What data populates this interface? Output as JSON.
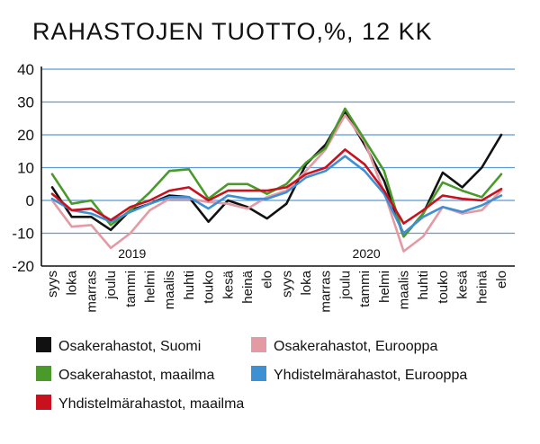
{
  "chart_data": {
    "type": "line",
    "title": "RAHASTOJEN TUOTTO,%, 12 KK",
    "categories": [
      "syys",
      "loka",
      "marras",
      "joulu",
      "tammi",
      "helmi",
      "maalis",
      "huhti",
      "touko",
      "kesä",
      "heinä",
      "elo",
      "syys",
      "loka",
      "marras",
      "joulu",
      "tammi",
      "helmi",
      "maalis",
      "huhti",
      "touko",
      "kesä",
      "heinä",
      "elo"
    ],
    "year_labels": [
      {
        "label": "2019",
        "category_index": 4
      },
      {
        "label": "2020",
        "category_index": 16
      }
    ],
    "ylim": [
      -20,
      40
    ],
    "yticks": [
      -20,
      -10,
      0,
      10,
      20,
      30,
      40
    ],
    "grid": true,
    "legend_position": "bottom",
    "series": [
      {
        "name": "Osakerahastot, Suomi",
        "color": "#111111",
        "values": [
          4,
          -5,
          -5,
          -9,
          -3,
          -1,
          1.5,
          1,
          -6.5,
          0,
          -2,
          -5.5,
          -1,
          11,
          17,
          27,
          17,
          6,
          -11,
          -4,
          8.5,
          4,
          10,
          20
        ]
      },
      {
        "name": "Osakerahastot, Eurooppa",
        "color": "#e49aa3",
        "values": [
          0,
          -8,
          -7.5,
          -14.5,
          -10,
          -3,
          0.5,
          0.5,
          -0.5,
          -1,
          -2.5,
          1,
          3,
          9,
          15.5,
          26,
          18,
          2.5,
          -15.5,
          -11,
          -2,
          -4,
          -3,
          3
        ]
      },
      {
        "name": "Osakerahastot, maailma",
        "color": "#4a9a2b",
        "values": [
          8,
          -1,
          0,
          -7.5,
          -3,
          2.5,
          9,
          9.5,
          0.5,
          5,
          5,
          2,
          5,
          11.5,
          16,
          28,
          18.5,
          9,
          -11,
          -4,
          5.5,
          3,
          1,
          8
        ]
      },
      {
        "name": "Yhdistelmärahastot, Eurooppa",
        "color": "#3e8fd3",
        "values": [
          0.5,
          -3,
          -4,
          -6.5,
          -3.5,
          -1,
          1,
          1,
          -2.5,
          1.5,
          0.5,
          0.5,
          2.5,
          7,
          9,
          13.5,
          9,
          2,
          -10,
          -5,
          -2,
          -3.5,
          -1.5,
          1.5
        ]
      },
      {
        "name": "Yhdistelmärahastot, maailma",
        "color": "#c8101f",
        "values": [
          2,
          -3,
          -2.5,
          -6,
          -2,
          0,
          3,
          4,
          0,
          3,
          3,
          3,
          4,
          8,
          10,
          15.5,
          11,
          3,
          -7,
          -3,
          1.5,
          0.5,
          0,
          3.5
        ]
      }
    ]
  }
}
